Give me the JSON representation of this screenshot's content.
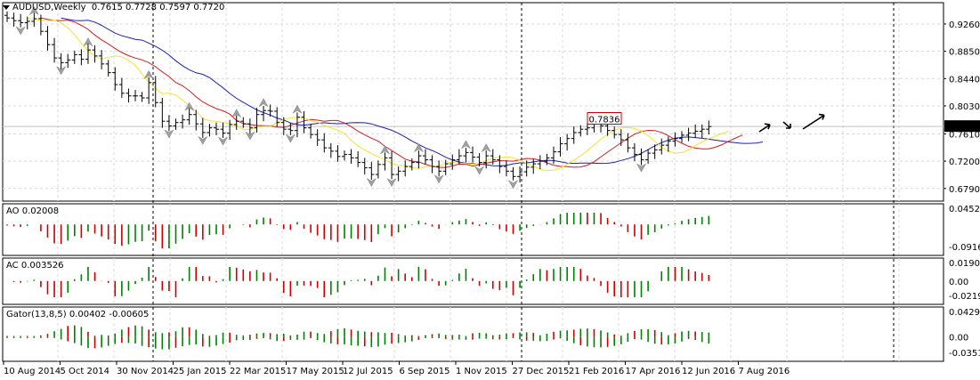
{
  "header": {
    "menu_icon": "triangle-down-icon",
    "symbol": "AUDUSD,Weekly",
    "ohlc": "0.7615 0.7728 0.7597 0.7720"
  },
  "colors": {
    "ma_blue": "#1e1eb4",
    "ma_red": "#d21e1e",
    "ma_yellow": "#f0e628",
    "bar_up": "#008000",
    "bar_down": "#cc0000",
    "fractal": "#a0a0a0",
    "current_price_label_bg": "#000000",
    "high_label_border": "#cc0000"
  },
  "chart_data": [
    {
      "type": "ohlc",
      "panel": "main",
      "title": "AUDUSD,Weekly",
      "y_ticks": [
        "0.9260",
        "0.8850",
        "0.8440",
        "0.8030",
        "0.7610",
        "0.7200",
        "0.6790"
      ],
      "ylim": [
        0.668,
        0.95
      ],
      "current_price": "0.7720",
      "high_label": "0.7836",
      "x_ticks": [
        "10 Aug 2014",
        "5 Oct 2014",
        "30 Nov 2014",
        "25 Jan 2015",
        "22 Mar 2015",
        "17 May 2015",
        "12 Jul 2015",
        "6 Sep 2015",
        "1 Nov 2015",
        "27 Dec 2015",
        "21 Feb 2016",
        "17 Apr 2016",
        "12 Jun 2016",
        "7 Aug 2016"
      ],
      "closes": [
        0.935,
        0.931,
        0.928,
        0.93,
        0.934,
        0.915,
        0.895,
        0.875,
        0.868,
        0.872,
        0.88,
        0.873,
        0.887,
        0.878,
        0.866,
        0.853,
        0.835,
        0.822,
        0.818,
        0.818,
        0.815,
        0.838,
        0.808,
        0.78,
        0.773,
        0.778,
        0.782,
        0.79,
        0.776,
        0.763,
        0.77,
        0.768,
        0.762,
        0.775,
        0.78,
        0.776,
        0.77,
        0.79,
        0.796,
        0.795,
        0.778,
        0.768,
        0.766,
        0.786,
        0.77,
        0.76,
        0.752,
        0.74,
        0.735,
        0.727,
        0.73,
        0.725,
        0.718,
        0.71,
        0.7,
        0.715,
        0.725,
        0.7,
        0.705,
        0.712,
        0.718,
        0.728,
        0.722,
        0.712,
        0.705,
        0.716,
        0.722,
        0.728,
        0.733,
        0.726,
        0.718,
        0.728,
        0.722,
        0.712,
        0.705,
        0.697,
        0.704,
        0.711,
        0.716,
        0.72,
        0.725,
        0.734,
        0.746,
        0.754,
        0.763,
        0.768,
        0.77,
        0.776,
        0.773,
        0.766,
        0.76,
        0.752,
        0.74,
        0.73,
        0.722,
        0.732,
        0.737,
        0.744,
        0.75,
        0.754,
        0.759,
        0.762,
        0.765,
        0.768,
        0.772
      ],
      "arrows": [
        "up",
        "down",
        "up"
      ]
    },
    {
      "type": "bar",
      "panel": "AO",
      "label": "AO 0.02008",
      "y_ticks": [
        "0.04525",
        "-0.09165"
      ],
      "ylim": [
        -0.0917,
        0.0453
      ]
    },
    {
      "type": "bar",
      "panel": "AC",
      "label": "AC 0.003526",
      "y_ticks": [
        "0.019003",
        "0.00",
        "-0.02199"
      ],
      "ylim": [
        -0.022,
        0.019
      ]
    },
    {
      "type": "bar",
      "panel": "Gator",
      "label": "Gator(13,8,5) 0.00402 -0.00605",
      "y_ticks": [
        "0.04297",
        "0.00",
        "-0.03514"
      ],
      "ylim": [
        -0.0351,
        0.043
      ]
    }
  ]
}
